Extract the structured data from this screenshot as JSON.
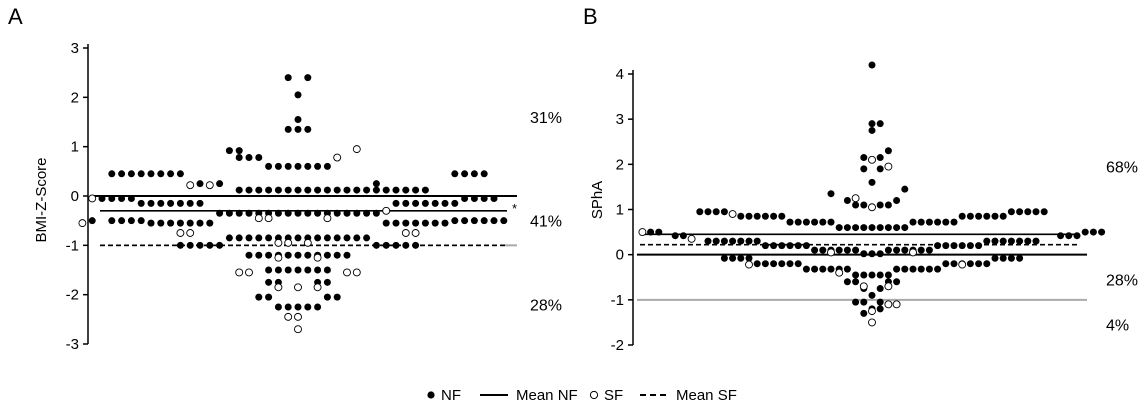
{
  "colors": {
    "NF": "#000000",
    "SF": "#ffffff",
    "gray_line": "#aaaaaa",
    "axis": "#000000"
  },
  "legend": {
    "items": [
      {
        "key": "NF",
        "label": "NF",
        "symbol": "filled-dot-icon"
      },
      {
        "key": "MeanNF",
        "label": "Mean NF",
        "symbol": "solid-line-icon"
      },
      {
        "key": "SF",
        "label": "SF",
        "symbol": "open-dot-icon"
      },
      {
        "key": "MeanSF",
        "label": "Mean SF",
        "symbol": "dashed-line-icon"
      }
    ]
  },
  "chart_data": [
    {
      "type": "scatter",
      "panel": "A",
      "ylabel": "BMI-Z-Score",
      "ylim": [
        -3,
        3
      ],
      "yticks": [
        -3,
        -2,
        -1,
        0,
        1,
        2,
        3
      ],
      "reference_lines": [
        {
          "name": "Mean NF",
          "y": -0.3,
          "style": "solid"
        },
        {
          "name": "Mean SF",
          "y": -1.0,
          "style": "dashed"
        },
        {
          "name": "zero",
          "y": 0,
          "style": "solid-thick"
        },
        {
          "name": "cutoff",
          "y": -1.0,
          "style": "gray"
        }
      ],
      "significance_marker": "*",
      "percent_labels": [
        {
          "text": "31%",
          "y": 1.6
        },
        {
          "text": "41%",
          "y": -0.5
        },
        {
          "text": "28%",
          "y": -2.2
        }
      ],
      "series": [
        {
          "name": "NF",
          "style": "filled",
          "rows": [
            {
              "y": 2.4,
              "offsets": [
                -1,
                1
              ]
            },
            {
              "y": 2.05,
              "offsets": [
                0
              ]
            },
            {
              "y": 1.55,
              "offsets": [
                0
              ]
            },
            {
              "y": 1.35,
              "offsets": [
                -1,
                0,
                1
              ]
            },
            {
              "y": 0.92,
              "offsets": [
                -7,
                -6
              ]
            },
            {
              "y": 0.78,
              "offsets": [
                -6,
                -5,
                -4
              ]
            },
            {
              "y": 0.45,
              "offsets": [
                -19,
                -18,
                -17,
                -16,
                -15,
                -14,
                -13,
                -12,
                16,
                17,
                18,
                19
              ]
            },
            {
              "y": 0.25,
              "offsets": [
                -10,
                -8,
                8
              ]
            },
            {
              "y": 0.12,
              "offsets": [
                -6,
                -5,
                -4,
                -3,
                -2,
                -1,
                0,
                1,
                2,
                3,
                4,
                5,
                6,
                7,
                8,
                9,
                10,
                11,
                12,
                13
              ]
            },
            {
              "y": 0.6,
              "offsets": [
                -3,
                -2,
                -1,
                0,
                1,
                2,
                3
              ]
            },
            {
              "y": -0.05,
              "offsets": [
                -20,
                -19,
                -18,
                -17,
                17,
                18,
                19,
                20
              ]
            },
            {
              "y": -0.15,
              "offsets": [
                -16,
                -15,
                -14,
                -13,
                -12,
                -11,
                -10,
                10,
                11,
                12,
                13,
                14,
                15,
                16
              ]
            },
            {
              "y": -0.35,
              "offsets": [
                -8,
                -7,
                -6,
                -5,
                -4,
                -3,
                -2,
                -1,
                0,
                1,
                2,
                3,
                4,
                5,
                6,
                7,
                8
              ]
            },
            {
              "y": -0.5,
              "offsets": [
                -21,
                -19,
                -18,
                -17,
                -16,
                16,
                17,
                18,
                19,
                20,
                21
              ]
            },
            {
              "y": -0.55,
              "offsets": [
                -15,
                -14,
                -13,
                -12,
                -11,
                -10,
                -9,
                9,
                10,
                11,
                12,
                13,
                14,
                15
              ]
            },
            {
              "y": -0.85,
              "offsets": [
                -7,
                -6,
                -5,
                -4,
                -3,
                -2,
                -1,
                0,
                1,
                2,
                3,
                4,
                5,
                6,
                7
              ]
            },
            {
              "y": -1.0,
              "offsets": [
                -12,
                -11,
                -10,
                -9,
                -8,
                8,
                9,
                10,
                11,
                12
              ]
            },
            {
              "y": -1.2,
              "offsets": [
                -5,
                -4,
                -3,
                -2,
                -1,
                0,
                1,
                2,
                3,
                4,
                5
              ]
            },
            {
              "y": -1.5,
              "offsets": [
                -3,
                -2,
                -1,
                0,
                1,
                2,
                3
              ]
            },
            {
              "y": -1.75,
              "offsets": [
                -3,
                -2,
                2,
                3
              ]
            },
            {
              "y": -2.05,
              "offsets": [
                -4,
                -3,
                3,
                4
              ]
            },
            {
              "y": -2.25,
              "offsets": [
                -2,
                -1,
                0,
                1,
                2
              ]
            }
          ]
        },
        {
          "name": "SF",
          "style": "open",
          "rows": [
            {
              "y": 0.95,
              "offsets": [
                6
              ]
            },
            {
              "y": 0.78,
              "offsets": [
                4
              ]
            },
            {
              "y": 0.22,
              "offsets": [
                -11,
                -9
              ]
            },
            {
              "y": -0.05,
              "offsets": [
                -21
              ]
            },
            {
              "y": -0.45,
              "offsets": [
                -4,
                -3,
                3
              ]
            },
            {
              "y": -0.3,
              "offsets": [
                9
              ]
            },
            {
              "y": -0.55,
              "offsets": [
                -22
              ]
            },
            {
              "y": -0.75,
              "offsets": [
                -12,
                -11,
                11,
                12
              ]
            },
            {
              "y": -0.95,
              "offsets": [
                -2,
                -1,
                1
              ]
            },
            {
              "y": -1.25,
              "offsets": [
                -2,
                2
              ]
            },
            {
              "y": -1.55,
              "offsets": [
                -6,
                -5,
                5,
                6
              ]
            },
            {
              "y": -1.85,
              "offsets": [
                -2,
                0,
                2
              ]
            },
            {
              "y": -2.45,
              "offsets": [
                -1,
                0
              ]
            },
            {
              "y": -2.7,
              "offsets": [
                0
              ]
            }
          ]
        }
      ]
    },
    {
      "type": "scatter",
      "panel": "B",
      "ylabel": "SPhA",
      "ylim": [
        -2,
        4.5
      ],
      "yticks": [
        -2,
        -1,
        0,
        1,
        2,
        3,
        4
      ],
      "reference_lines": [
        {
          "name": "Mean NF",
          "y": 0.45,
          "style": "solid"
        },
        {
          "name": "Mean SF",
          "y": 0.22,
          "style": "dashed"
        },
        {
          "name": "zero",
          "y": 0,
          "style": "solid-thick"
        },
        {
          "name": "cutoff",
          "y": -1.0,
          "style": "gray"
        }
      ],
      "percent_labels": [
        {
          "text": "68%",
          "y": 1.95
        },
        {
          "text": "28%",
          "y": -0.55
        },
        {
          "text": "4%",
          "y": -1.55
        }
      ],
      "series": [
        {
          "name": "NF",
          "style": "filled",
          "rows": [
            {
              "y": 4.2,
              "offsets": [
                0
              ]
            },
            {
              "y": 2.9,
              "offsets": [
                0,
                1
              ]
            },
            {
              "y": 2.75,
              "offsets": [
                0
              ]
            },
            {
              "y": 2.3,
              "offsets": [
                2
              ]
            },
            {
              "y": 2.15,
              "offsets": [
                -1,
                1
              ]
            },
            {
              "y": 1.9,
              "offsets": [
                -1,
                1
              ]
            },
            {
              "y": 1.6,
              "offsets": [
                0
              ]
            },
            {
              "y": 1.45,
              "offsets": [
                4
              ]
            },
            {
              "y": 1.35,
              "offsets": [
                -5
              ]
            },
            {
              "y": 1.2,
              "offsets": [
                -3,
                3
              ]
            },
            {
              "y": 1.1,
              "offsets": [
                -2,
                -1,
                1,
                2
              ]
            },
            {
              "y": 0.95,
              "offsets": [
                -21,
                -20,
                -19,
                -18,
                17,
                18,
                19,
                20,
                21
              ]
            },
            {
              "y": 0.85,
              "offsets": [
                -16,
                -15,
                -14,
                -13,
                -12,
                -11,
                11,
                12,
                13,
                14,
                15,
                16
              ]
            },
            {
              "y": 0.72,
              "offsets": [
                -10,
                -9,
                -8,
                -7,
                -6,
                -5,
                5,
                6,
                7,
                8,
                9,
                10
              ]
            },
            {
              "y": 0.6,
              "offsets": [
                -4,
                -3,
                -2,
                -1,
                0,
                1,
                2,
                3,
                4
              ]
            },
            {
              "y": 0.5,
              "offsets": [
                -27,
                -26,
                26,
                27,
                28
              ]
            },
            {
              "y": 0.42,
              "offsets": [
                -24,
                -23,
                23,
                24,
                25
              ]
            },
            {
              "y": 0.3,
              "offsets": [
                -20,
                -19,
                -18,
                -17,
                -16,
                -15,
                -14,
                14,
                15,
                16,
                17,
                18,
                19,
                20
              ]
            },
            {
              "y": 0.2,
              "offsets": [
                -13,
                -12,
                -11,
                -10,
                -9,
                -8,
                8,
                9,
                10,
                11,
                12,
                13
              ]
            },
            {
              "y": 0.1,
              "offsets": [
                -7,
                -6,
                -5,
                -4,
                -3,
                -2,
                2,
                3,
                4,
                5,
                6,
                7
              ]
            },
            {
              "y": 0.02,
              "offsets": [
                -1,
                0,
                1
              ]
            },
            {
              "y": -0.08,
              "offsets": [
                -18,
                -17,
                -16,
                -15,
                15,
                16,
                17,
                18
              ]
            },
            {
              "y": -0.2,
              "offsets": [
                -14,
                -13,
                -12,
                -11,
                -10,
                -9,
                9,
                10,
                11,
                12,
                13,
                14
              ]
            },
            {
              "y": -0.32,
              "offsets": [
                -8,
                -7,
                -6,
                -5,
                -4,
                -3,
                3,
                4,
                5,
                6,
                7,
                8
              ]
            },
            {
              "y": -0.45,
              "offsets": [
                -2,
                -1,
                0,
                1,
                2
              ]
            },
            {
              "y": -0.6,
              "offsets": [
                -3,
                -2,
                2,
                3
              ]
            },
            {
              "y": -0.75,
              "offsets": [
                -1,
                1
              ]
            },
            {
              "y": -0.9,
              "offsets": [
                0
              ]
            },
            {
              "y": -1.05,
              "offsets": [
                -2,
                -1,
                1
              ]
            },
            {
              "y": -1.2,
              "offsets": [
                0,
                1
              ]
            },
            {
              "y": -1.3,
              "offsets": [
                -1
              ]
            }
          ]
        },
        {
          "name": "SF",
          "style": "open",
          "rows": [
            {
              "y": 2.1,
              "offsets": [
                0
              ]
            },
            {
              "y": 1.95,
              "offsets": [
                2
              ]
            },
            {
              "y": 1.25,
              "offsets": [
                -2
              ]
            },
            {
              "y": 1.05,
              "offsets": [
                0
              ]
            },
            {
              "y": 0.9,
              "offsets": [
                -17
              ]
            },
            {
              "y": 0.5,
              "offsets": [
                -28
              ]
            },
            {
              "y": 0.35,
              "offsets": [
                -22
              ]
            },
            {
              "y": 0.05,
              "offsets": [
                -5,
                5
              ]
            },
            {
              "y": -0.22,
              "offsets": [
                -15,
                11
              ]
            },
            {
              "y": -0.4,
              "offsets": [
                -4
              ]
            },
            {
              "y": -0.7,
              "offsets": [
                -1,
                2
              ]
            },
            {
              "y": -1.1,
              "offsets": [
                2,
                3
              ]
            },
            {
              "y": -1.25,
              "offsets": [
                0
              ]
            },
            {
              "y": -1.5,
              "offsets": [
                0
              ]
            }
          ]
        }
      ]
    }
  ]
}
